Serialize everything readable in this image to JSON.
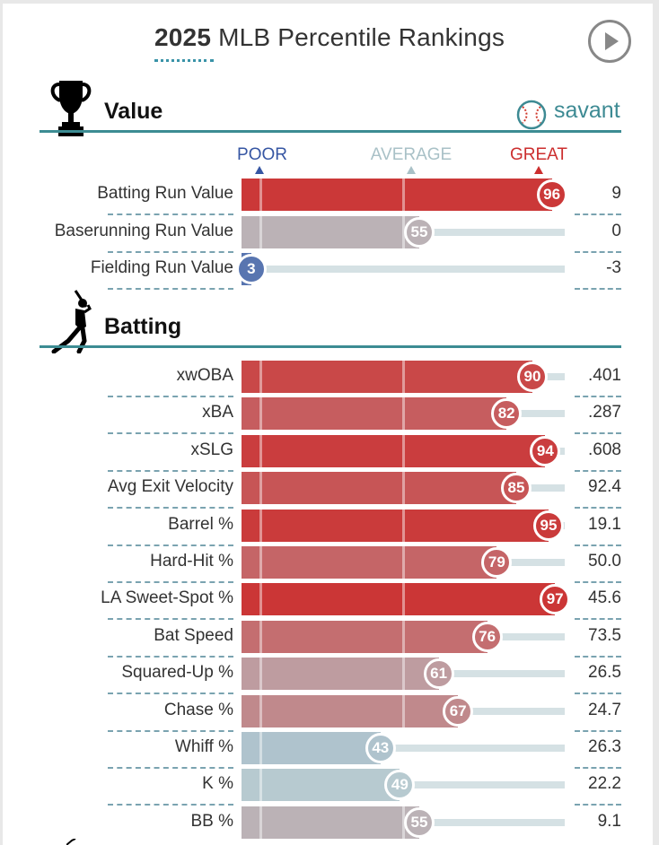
{
  "header": {
    "year": "2025",
    "title_rest": " MLB Percentile Rankings"
  },
  "brand": {
    "savant_label": "savant"
  },
  "scale": {
    "poor": "POOR",
    "average": "AVERAGE",
    "great": "GREAT"
  },
  "colors": {
    "accent_teal": "#3c8c93",
    "poor_blue": "#3656a3",
    "average_gray": "#a9c1c7",
    "great_red": "#cc2e2e"
  },
  "icons": {
    "value_section": "trophy-icon",
    "batting_section": "batter-icon",
    "play": "play-icon",
    "brand": "baseball-icon"
  },
  "sections": [
    {
      "name": "Value",
      "rows": [
        {
          "label": "Batting Run Value",
          "percentile": 96,
          "value": "9"
        },
        {
          "label": "Baserunning Run Value",
          "percentile": 55,
          "value": "0"
        },
        {
          "label": "Fielding Run Value",
          "percentile": 3,
          "value": "-3"
        }
      ]
    },
    {
      "name": "Batting",
      "rows": [
        {
          "label": "xwOBA",
          "percentile": 90,
          "value": ".401"
        },
        {
          "label": "xBA",
          "percentile": 82,
          "value": ".287"
        },
        {
          "label": "xSLG",
          "percentile": 94,
          "value": ".608"
        },
        {
          "label": "Avg Exit Velocity",
          "percentile": 85,
          "value": "92.4"
        },
        {
          "label": "Barrel %",
          "percentile": 95,
          "value": "19.1"
        },
        {
          "label": "Hard-Hit %",
          "percentile": 79,
          "value": "50.0"
        },
        {
          "label": "LA Sweet-Spot %",
          "percentile": 97,
          "value": "45.6"
        },
        {
          "label": "Bat Speed",
          "percentile": 76,
          "value": "73.5"
        },
        {
          "label": "Squared-Up %",
          "percentile": 61,
          "value": "26.5"
        },
        {
          "label": "Chase %",
          "percentile": 67,
          "value": "24.7"
        },
        {
          "label": "Whiff %",
          "percentile": 43,
          "value": "26.3"
        },
        {
          "label": "K %",
          "percentile": 49,
          "value": "22.2"
        },
        {
          "label": "BB %",
          "percentile": 55,
          "value": "9.1"
        }
      ]
    }
  ],
  "chart_data": {
    "type": "bar",
    "orientation": "horizontal",
    "scale_labels": [
      "POOR",
      "AVERAGE",
      "GREAT"
    ],
    "xlim": [
      0,
      100
    ],
    "categories": [
      "Batting Run Value",
      "Baserunning Run Value",
      "Fielding Run Value",
      "xwOBA",
      "xBA",
      "xSLG",
      "Avg Exit Velocity",
      "Barrel %",
      "Hard-Hit %",
      "LA Sweet-Spot %",
      "Bat Speed",
      "Squared-Up %",
      "Chase %",
      "Whiff %",
      "K %",
      "BB %"
    ],
    "values": [
      96,
      55,
      3,
      90,
      82,
      94,
      85,
      95,
      79,
      97,
      76,
      61,
      67,
      43,
      49,
      55
    ],
    "stat_values": [
      "9",
      "0",
      "-3",
      ".401",
      ".287",
      ".608",
      "92.4",
      "19.1",
      "50.0",
      "45.6",
      "73.5",
      "26.5",
      "24.7",
      "26.3",
      "22.2",
      "9.1"
    ]
  }
}
